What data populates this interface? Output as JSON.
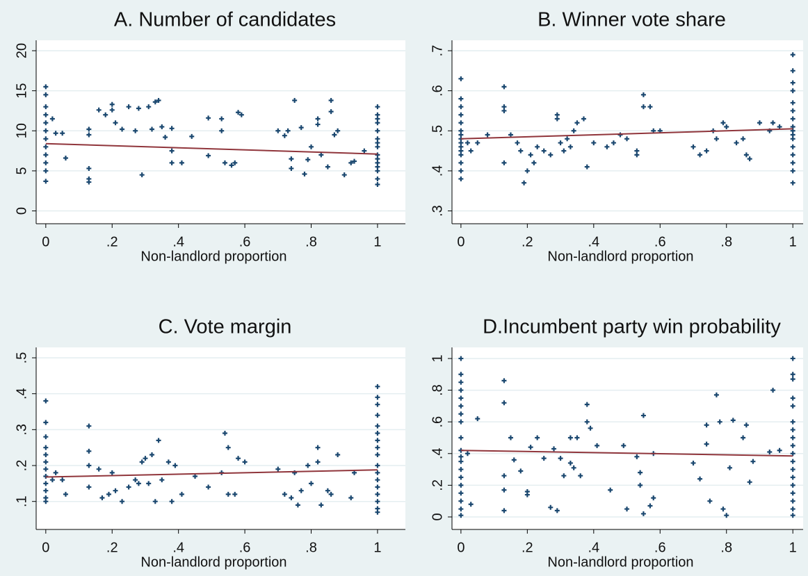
{
  "chart_data": [
    {
      "type": "scatter",
      "title": "A. Number of candidates",
      "xlabel": "Non-landlord proportion",
      "xlim": [
        -0.029,
        1.084
      ],
      "ylim": [
        -1.6,
        21.3
      ],
      "xticks": [
        0,
        {
          "value": 0.2,
          "label": ".2"
        },
        {
          "value": 0.4,
          "label": ".4"
        },
        {
          "value": 0.6,
          "label": ".6"
        },
        {
          "value": 0.8,
          "label": ".8"
        },
        1
      ],
      "yticks": [
        0,
        5,
        10,
        15,
        20
      ],
      "grid": true,
      "series": [
        {
          "type": "scatter",
          "color": "#1a476f",
          "x": [
            0,
            0,
            0,
            0,
            0,
            0,
            0,
            0,
            0,
            0,
            0,
            0,
            1,
            1,
            1,
            1,
            1,
            1,
            1,
            1,
            1,
            1,
            1,
            1,
            1,
            1,
            1,
            0.02,
            0.03,
            0.05,
            0.06,
            0.13,
            0.13,
            0.13,
            0.13,
            0.13,
            0.16,
            0.18,
            0.2,
            0.2,
            0.21,
            0.23,
            0.25,
            0.27,
            0.28,
            0.29,
            0.31,
            0.32,
            0.33,
            0.34,
            0.35,
            0.36,
            0.38,
            0.38,
            0.38,
            0.41,
            0.44,
            0.49,
            0.49,
            0.53,
            0.53,
            0.54,
            0.56,
            0.57,
            0.58,
            0.59,
            0.7,
            0.72,
            0.73,
            0.74,
            0.74,
            0.75,
            0.77,
            0.78,
            0.79,
            0.8,
            0.82,
            0.82,
            0.83,
            0.85,
            0.86,
            0.86,
            0.87,
            0.88,
            0.9,
            0.92,
            0.93,
            0.96
          ],
          "values": [
            15.5,
            14.5,
            13,
            12,
            11,
            10,
            9,
            8,
            7,
            6,
            5,
            3.7,
            13,
            12,
            11.5,
            11,
            10,
            9,
            8.5,
            8,
            7,
            6.5,
            6,
            5.5,
            5,
            4,
            3.3,
            11.5,
            9.7,
            9.7,
            6.6,
            10.2,
            9.5,
            5.3,
            4,
            3.6,
            12.6,
            12,
            13.3,
            12.6,
            11,
            10.2,
            13,
            10,
            12.8,
            4.5,
            13,
            10.2,
            13.6,
            13.8,
            10.5,
            9.2,
            7.5,
            6,
            10.3,
            6,
            9.3,
            11.6,
            6.9,
            11.5,
            10,
            6,
            5.7,
            6,
            12.3,
            12,
            10,
            9.4,
            10,
            6.5,
            5.3,
            13.8,
            10.4,
            4.6,
            6.4,
            8,
            11.5,
            10.8,
            7,
            5.5,
            13.8,
            12.4,
            9.5,
            10,
            4.5,
            6,
            6.2,
            7.5
          ]
        },
        {
          "type": "line",
          "color": "#90353b",
          "x": [
            0,
            1
          ],
          "values": [
            8.4,
            7.1
          ]
        }
      ]
    },
    {
      "type": "scatter",
      "title": "B. Winner vote share",
      "xlabel": "Non-landlord proportion",
      "xlim": [
        -0.027,
        1.031
      ],
      "ylim": [
        0.268,
        0.726
      ],
      "xticks": [
        0,
        {
          "value": 0.2,
          "label": ".2"
        },
        {
          "value": 0.4,
          "label": ".4"
        },
        {
          "value": 0.6,
          "label": ".6"
        },
        {
          "value": 0.8,
          "label": ".8"
        },
        1
      ],
      "yticks": [
        {
          "value": 0.3,
          "label": ".3"
        },
        {
          "value": 0.4,
          "label": ".4"
        },
        {
          "value": 0.5,
          "label": ".5"
        },
        {
          "value": 0.6,
          "label": ".6"
        },
        {
          "value": 0.7,
          "label": ".7"
        }
      ],
      "grid": true,
      "series": [
        {
          "type": "scatter",
          "color": "#1a476f",
          "x": [
            0,
            0,
            0,
            0,
            0,
            0,
            0,
            0,
            0,
            0,
            0,
            0,
            0,
            0,
            0,
            1,
            1,
            1,
            1,
            1,
            1,
            1,
            1,
            1,
            1,
            1,
            1,
            1,
            1,
            1,
            1,
            0.02,
            0.03,
            0.05,
            0.08,
            0.13,
            0.13,
            0.13,
            0.13,
            0.15,
            0.17,
            0.18,
            0.19,
            0.2,
            0.21,
            0.22,
            0.23,
            0.25,
            0.27,
            0.29,
            0.29,
            0.3,
            0.31,
            0.32,
            0.33,
            0.34,
            0.35,
            0.37,
            0.38,
            0.4,
            0.44,
            0.46,
            0.48,
            0.5,
            0.53,
            0.53,
            0.55,
            0.55,
            0.57,
            0.58,
            0.6,
            0.7,
            0.72,
            0.74,
            0.76,
            0.77,
            0.79,
            0.8,
            0.83,
            0.85,
            0.86,
            0.87,
            0.9,
            0.93,
            0.94,
            0.96
          ],
          "values": [
            0.63,
            0.58,
            0.56,
            0.54,
            0.52,
            0.5,
            0.49,
            0.48,
            0.47,
            0.46,
            0.45,
            0.44,
            0.42,
            0.4,
            0.38,
            0.69,
            0.65,
            0.62,
            0.6,
            0.57,
            0.55,
            0.53,
            0.51,
            0.5,
            0.49,
            0.48,
            0.46,
            0.44,
            0.42,
            0.4,
            0.37,
            0.47,
            0.45,
            0.47,
            0.49,
            0.61,
            0.56,
            0.55,
            0.42,
            0.49,
            0.47,
            0.45,
            0.37,
            0.4,
            0.44,
            0.42,
            0.46,
            0.45,
            0.44,
            0.54,
            0.53,
            0.47,
            0.45,
            0.48,
            0.46,
            0.5,
            0.52,
            0.53,
            0.41,
            0.47,
            0.46,
            0.47,
            0.49,
            0.48,
            0.45,
            0.44,
            0.59,
            0.56,
            0.56,
            0.5,
            0.5,
            0.46,
            0.44,
            0.45,
            0.5,
            0.48,
            0.52,
            0.51,
            0.47,
            0.48,
            0.44,
            0.43,
            0.52,
            0.5,
            0.52,
            0.51
          ]
        },
        {
          "type": "line",
          "color": "#90353b",
          "x": [
            0,
            1
          ],
          "values": [
            0.48,
            0.505
          ]
        }
      ]
    },
    {
      "type": "scatter",
      "title": "C. Vote margin",
      "xlabel": "Non-landlord proportion",
      "xlim": [
        -0.029,
        1.084
      ],
      "ylim": [
        0.022,
        0.529
      ],
      "xticks": [
        0,
        {
          "value": 0.2,
          "label": ".2"
        },
        {
          "value": 0.4,
          "label": ".4"
        },
        {
          "value": 0.6,
          "label": ".6"
        },
        {
          "value": 0.8,
          "label": ".8"
        },
        1
      ],
      "yticks": [
        {
          "value": 0.1,
          "label": ".1"
        },
        {
          "value": 0.2,
          "label": ".2"
        },
        {
          "value": 0.3,
          "label": ".3"
        },
        {
          "value": 0.4,
          "label": ".4"
        },
        {
          "value": 0.5,
          "label": ".5"
        }
      ],
      "grid": true,
      "series": [
        {
          "type": "scatter",
          "color": "#1a476f",
          "x": [
            0,
            0,
            0,
            0,
            0,
            0,
            0,
            0,
            0,
            0,
            0,
            0,
            1,
            1,
            1,
            1,
            1,
            1,
            1,
            1,
            1,
            1,
            1,
            1,
            1,
            1,
            1,
            1,
            1,
            0.02,
            0.03,
            0.05,
            0.06,
            0.13,
            0.13,
            0.13,
            0.13,
            0.16,
            0.17,
            0.19,
            0.2,
            0.21,
            0.23,
            0.25,
            0.27,
            0.28,
            0.29,
            0.3,
            0.31,
            0.32,
            0.33,
            0.34,
            0.35,
            0.37,
            0.38,
            0.39,
            0.41,
            0.45,
            0.49,
            0.53,
            0.54,
            0.55,
            0.55,
            0.57,
            0.58,
            0.6,
            0.7,
            0.72,
            0.74,
            0.75,
            0.76,
            0.77,
            0.79,
            0.8,
            0.82,
            0.82,
            0.83,
            0.85,
            0.86,
            0.88,
            0.92,
            0.93
          ],
          "values": [
            0.38,
            0.32,
            0.28,
            0.25,
            0.23,
            0.21,
            0.19,
            0.17,
            0.15,
            0.13,
            0.11,
            0.1,
            0.42,
            0.39,
            0.37,
            0.34,
            0.31,
            0.29,
            0.27,
            0.25,
            0.23,
            0.2,
            0.18,
            0.16,
            0.14,
            0.12,
            0.1,
            0.08,
            0.07,
            0.16,
            0.18,
            0.16,
            0.12,
            0.31,
            0.24,
            0.2,
            0.14,
            0.19,
            0.11,
            0.12,
            0.18,
            0.13,
            0.1,
            0.14,
            0.16,
            0.15,
            0.21,
            0.22,
            0.15,
            0.23,
            0.1,
            0.27,
            0.16,
            0.21,
            0.1,
            0.2,
            0.12,
            0.17,
            0.14,
            0.18,
            0.29,
            0.25,
            0.12,
            0.12,
            0.22,
            0.21,
            0.19,
            0.12,
            0.11,
            0.18,
            0.09,
            0.13,
            0.2,
            0.15,
            0.25,
            0.21,
            0.09,
            0.13,
            0.12,
            0.23,
            0.11,
            0.18
          ]
        },
        {
          "type": "line",
          "color": "#90353b",
          "x": [
            0,
            1
          ],
          "values": [
            0.168,
            0.188
          ]
        }
      ]
    },
    {
      "type": "scatter",
      "title": "D.Incumbent party win probability",
      "xlabel": "Non-landlord proportion",
      "xlim": [
        -0.027,
        1.031
      ],
      "ylim": [
        -0.079,
        1.07
      ],
      "xticks": [
        0,
        {
          "value": 0.2,
          "label": ".2"
        },
        {
          "value": 0.4,
          "label": ".4"
        },
        {
          "value": 0.6,
          "label": ".6"
        },
        {
          "value": 0.8,
          "label": ".8"
        },
        1
      ],
      "yticks": [
        0,
        {
          "value": 0.2,
          "label": ".2"
        },
        {
          "value": 0.4,
          "label": ".4"
        },
        {
          "value": 0.6,
          "label": ".6"
        },
        {
          "value": 0.8,
          "label": ".8"
        },
        1
      ],
      "grid": true,
      "series": [
        {
          "type": "scatter",
          "color": "#1a476f",
          "x": [
            0,
            0,
            0,
            0,
            0,
            0,
            0,
            0,
            0,
            0,
            0,
            0,
            0,
            0,
            0,
            0,
            0,
            0,
            0,
            1,
            1,
            1,
            1,
            1,
            1,
            1,
            1,
            1,
            1,
            1,
            1,
            1,
            1,
            1,
            1,
            1,
            1,
            0.02,
            0.03,
            0.05,
            0.13,
            0.13,
            0.13,
            0.13,
            0.13,
            0.15,
            0.16,
            0.18,
            0.2,
            0.2,
            0.21,
            0.23,
            0.25,
            0.27,
            0.28,
            0.29,
            0.3,
            0.31,
            0.33,
            0.33,
            0.34,
            0.35,
            0.36,
            0.38,
            0.38,
            0.39,
            0.41,
            0.45,
            0.49,
            0.5,
            0.53,
            0.54,
            0.54,
            0.55,
            0.55,
            0.57,
            0.58,
            0.58,
            0.7,
            0.72,
            0.74,
            0.74,
            0.75,
            0.77,
            0.78,
            0.79,
            0.8,
            0.81,
            0.82,
            0.85,
            0.86,
            0.87,
            0.88,
            0.93,
            0.94,
            0.96
          ],
          "values": [
            1,
            0.9,
            0.85,
            0.8,
            0.75,
            0.7,
            0.65,
            0.6,
            0.5,
            0.42,
            0.38,
            0.35,
            0.3,
            0.25,
            0.2,
            0.15,
            0.1,
            0.05,
            0.01,
            1,
            0.9,
            0.87,
            0.75,
            0.7,
            0.6,
            0.55,
            0.5,
            0.45,
            0.4,
            0.35,
            0.3,
            0.25,
            0.2,
            0.15,
            0.1,
            0.05,
            0.01,
            0.4,
            0.08,
            0.62,
            0.86,
            0.72,
            0.26,
            0.17,
            0.04,
            0.5,
            0.36,
            0.29,
            0.16,
            0.14,
            0.44,
            0.5,
            0.37,
            0.06,
            0.43,
            0.04,
            0.37,
            0.26,
            0.5,
            0.34,
            0.31,
            0.5,
            0.26,
            0.71,
            0.6,
            0.56,
            0.45,
            0.17,
            0.45,
            0.05,
            0.38,
            0.28,
            0.2,
            0.64,
            0.02,
            0.07,
            0.4,
            0.12,
            0.34,
            0.24,
            0.58,
            0.46,
            0.1,
            0.77,
            0.6,
            0.05,
            0.01,
            0.31,
            0.61,
            0.5,
            0.58,
            0.22,
            0.35,
            0.41,
            0.8,
            0.42
          ]
        },
        {
          "type": "line",
          "color": "#90353b",
          "x": [
            0,
            1
          ],
          "values": [
            0.42,
            0.385
          ]
        }
      ]
    }
  ]
}
